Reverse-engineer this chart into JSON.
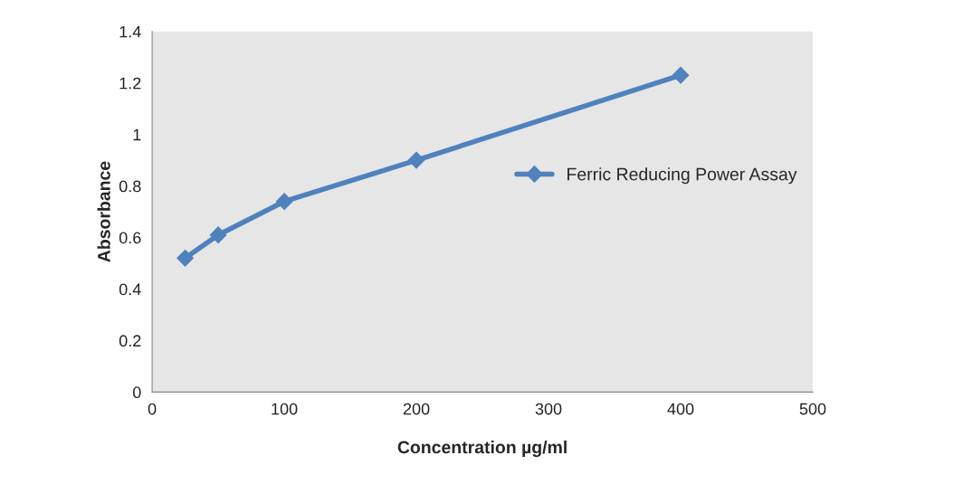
{
  "chart_data": {
    "type": "line",
    "xlabel": "Concentration µg/ml",
    "ylabel": "Absorbance",
    "x": [
      25,
      50,
      100,
      200,
      400
    ],
    "series": [
      {
        "name": "Ferric Reducing Power Assay",
        "color": "#4f81bd",
        "values": [
          0.52,
          0.61,
          0.74,
          0.9,
          1.23
        ]
      }
    ],
    "xlim": [
      0,
      500
    ],
    "xticks": [
      0,
      100,
      200,
      300,
      400,
      500
    ],
    "ylim": [
      0,
      1.4
    ],
    "yticks": [
      {
        "value": 0,
        "label": "0"
      },
      {
        "value": 0.2,
        "label": "0.2"
      },
      {
        "value": 0.4,
        "label": "0.4"
      },
      {
        "value": 0.6,
        "label": "0.6"
      },
      {
        "value": 0.8,
        "label": "0.8"
      },
      {
        "value": 1,
        "label": "1"
      },
      {
        "value": 1.2,
        "label": "1.2"
      },
      {
        "value": 1.4,
        "label": "1.4"
      }
    ],
    "grid": false,
    "legend": "right",
    "marker": "diamond",
    "line_style": "solid"
  }
}
